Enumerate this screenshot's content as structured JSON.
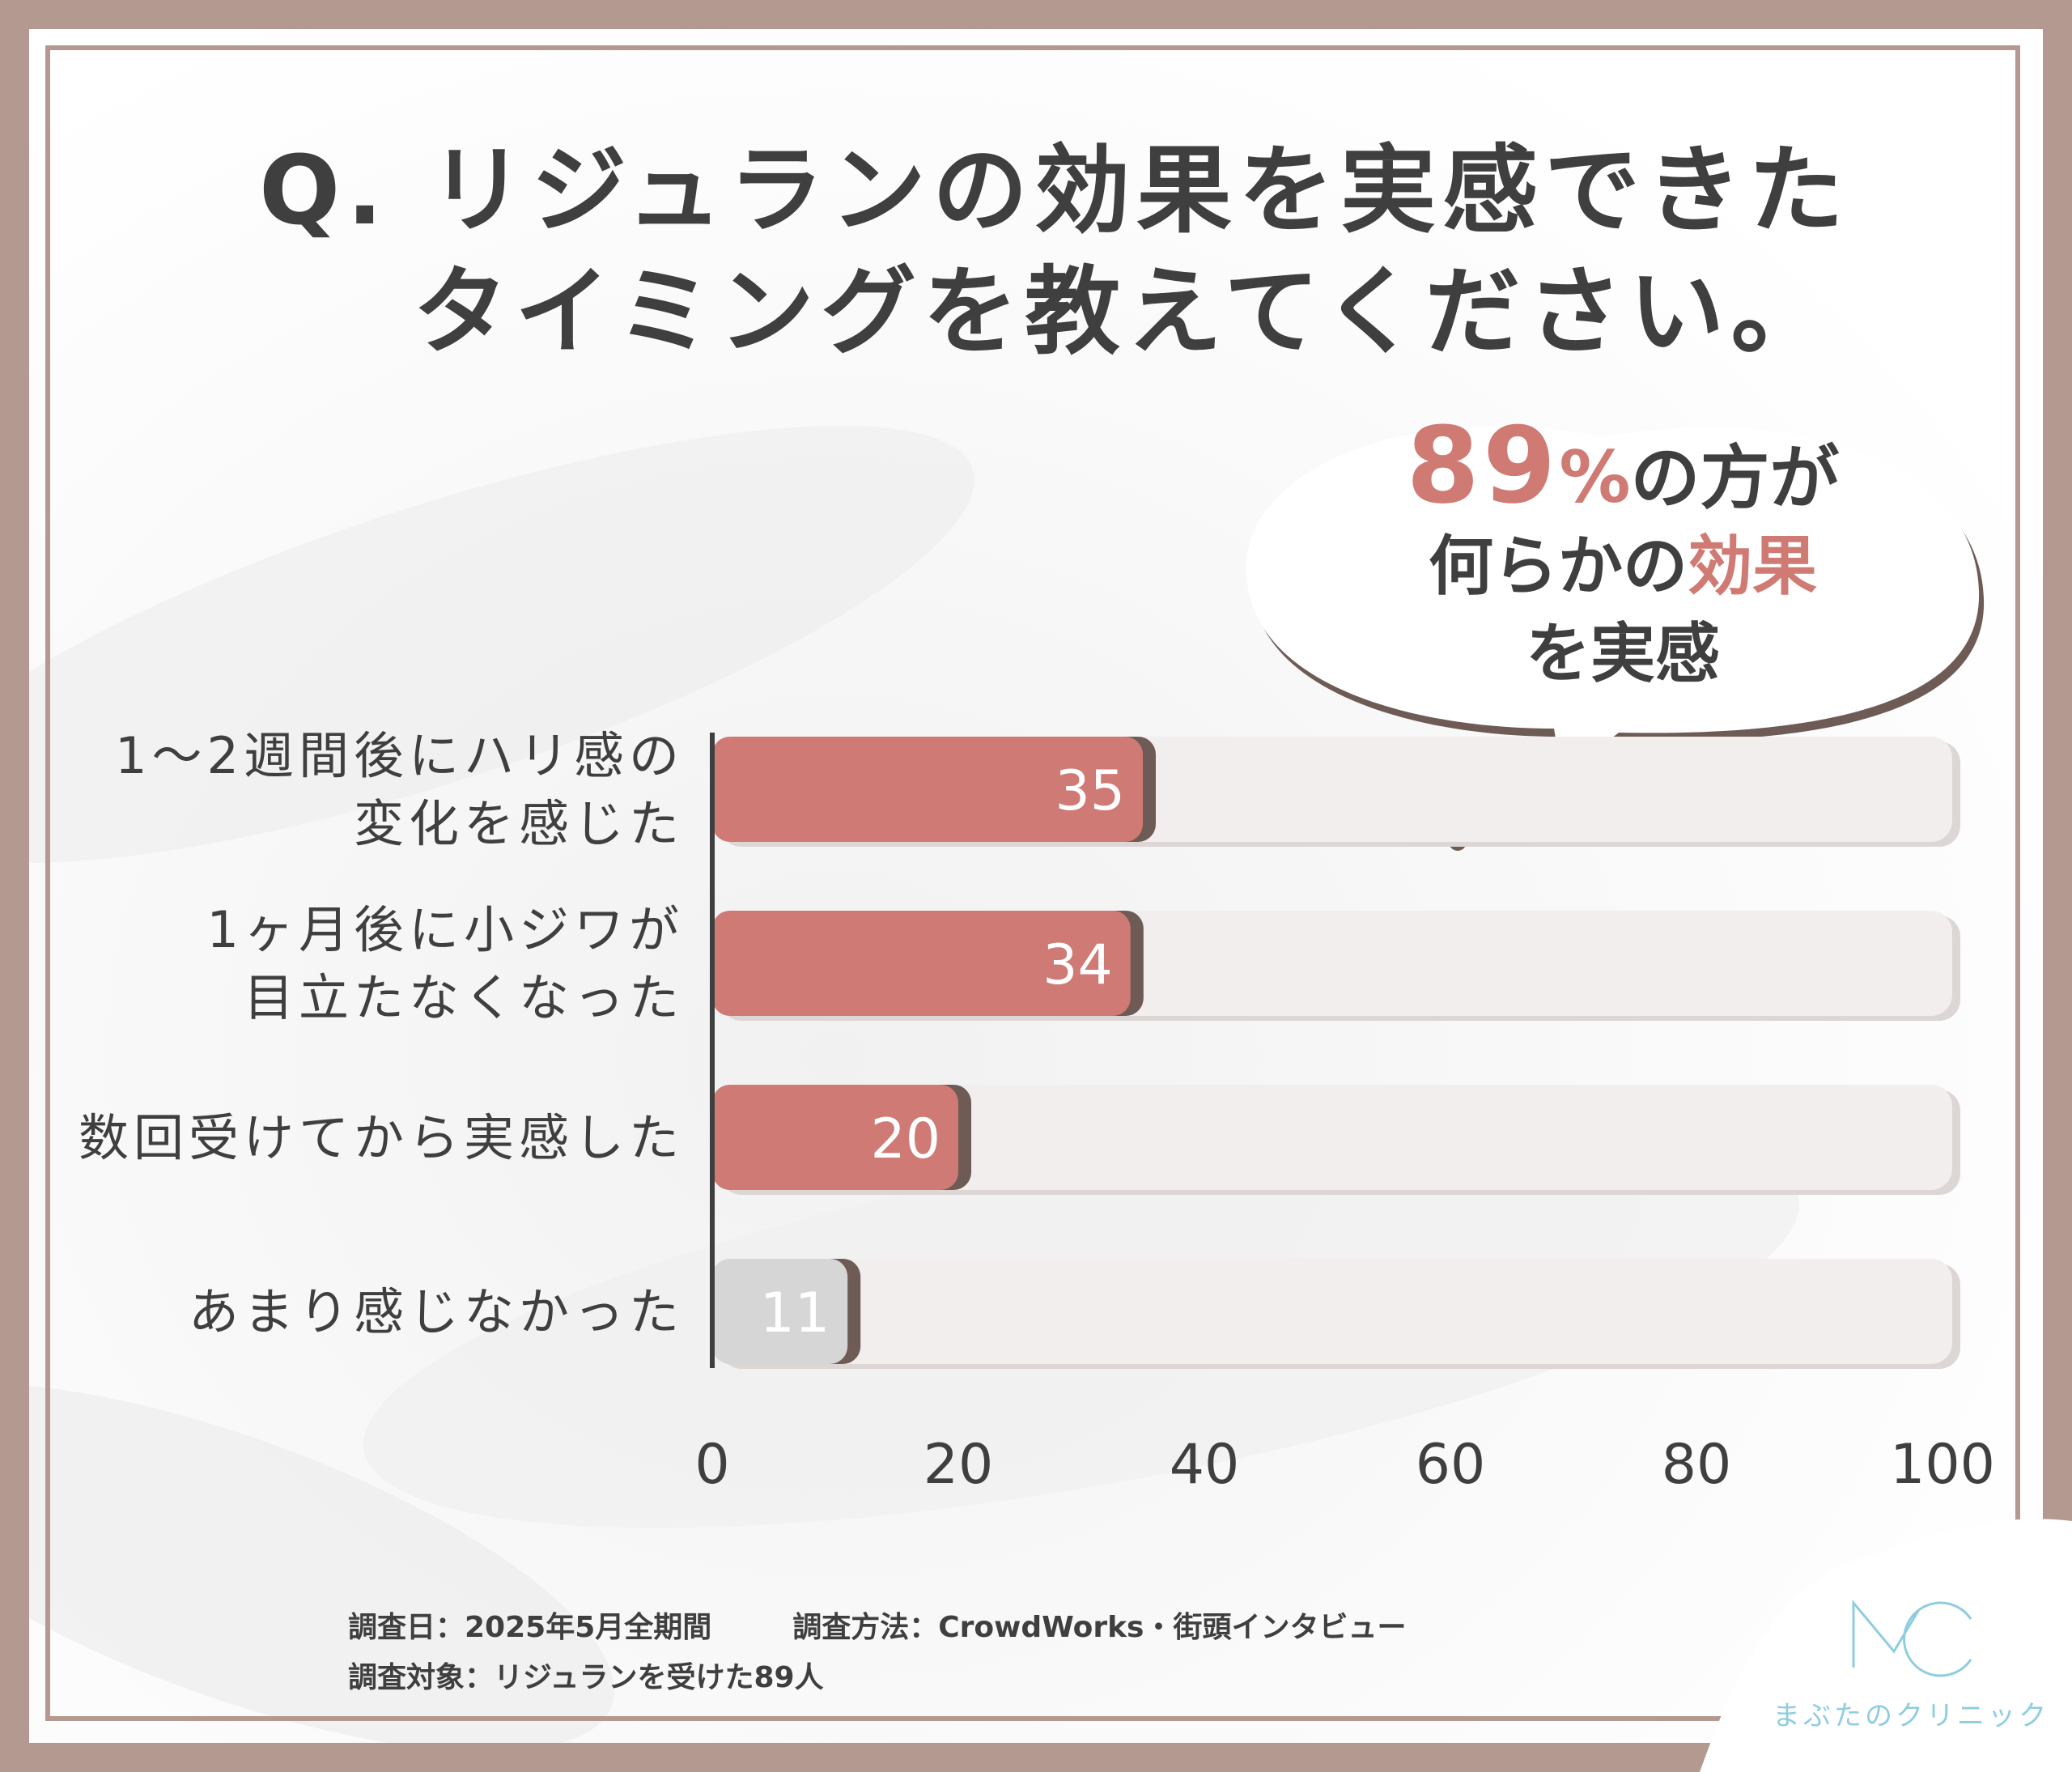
{
  "title": {
    "line1": "Q. リジュランの効果を実感できた",
    "line2": "タイミングを教えてください。"
  },
  "callout": {
    "number": "89",
    "percent": "%",
    "text1": "の方が",
    "text2_pre": "何らかの",
    "text2_accent": "効果",
    "text3": "を実感"
  },
  "chart_data": {
    "type": "bar",
    "orientation": "horizontal",
    "categories": [
      [
        "1～2週間後にハリ感の",
        "変化を感じた"
      ],
      [
        "1ヶ月後に小ジワが",
        "目立たなくなった"
      ],
      [
        "数回受けてから実感した"
      ],
      [
        "あまり感じなかった"
      ]
    ],
    "values": [
      35,
      34,
      20,
      11
    ],
    "value_labels": [
      "35",
      "34",
      "20",
      "11"
    ],
    "bar_colors": [
      "#cf7a74",
      "#cf7a74",
      "#cf7a74",
      "#d6d6d6"
    ],
    "xlim": [
      0,
      100
    ],
    "xticks": [
      0,
      20,
      40,
      60,
      80,
      100
    ],
    "xlabel": "",
    "ylabel": "",
    "grid": false
  },
  "footer": {
    "date": "調査日：2025年5月全期間",
    "method": "調査方法：CrowdWorks・街頭インタビュー",
    "target": "調査対象：リジュランを受けた89人"
  },
  "logo": {
    "mark": "MC",
    "name": "まぶたのクリニック"
  },
  "colors": {
    "border": "#b3998f",
    "bar_primary": "#cf7a74",
    "bar_muted": "#d6d6d6",
    "track": "#f1eeed",
    "accent_text": "#d07a74",
    "logo": "#8fcde0"
  }
}
